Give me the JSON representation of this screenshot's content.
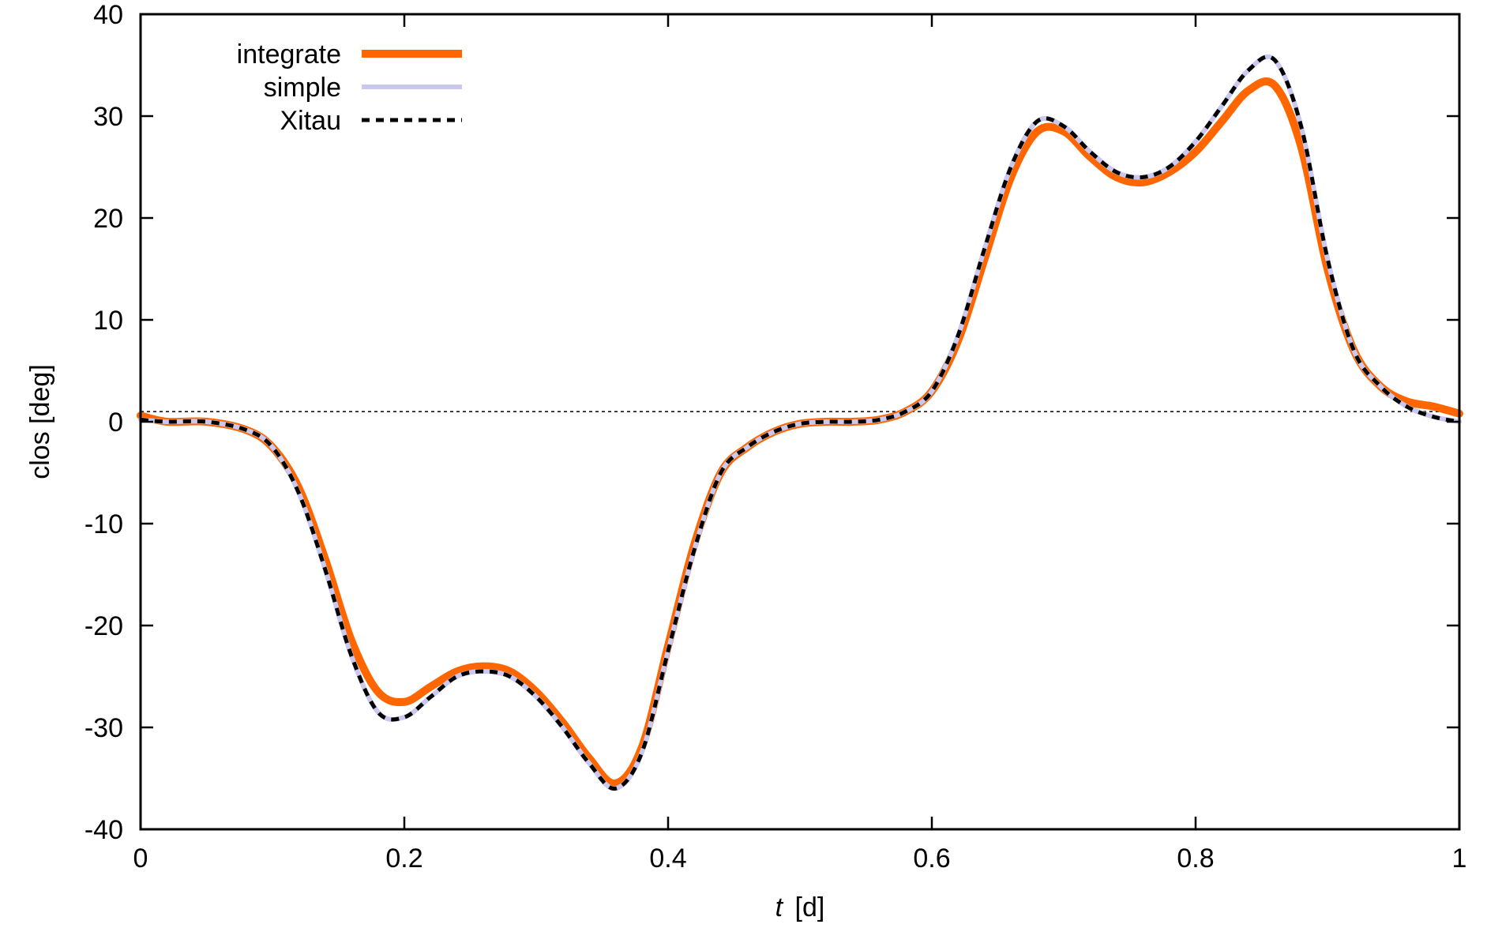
{
  "chart_data": {
    "type": "line",
    "title": "",
    "xlabel_italic": "t",
    "xlabel_unit": "[d]",
    "ylabel": "clos [deg]",
    "xlim": [
      0,
      1
    ],
    "ylim": [
      -40,
      40
    ],
    "xticks": [
      0,
      0.2,
      0.4,
      0.6,
      0.8,
      1
    ],
    "xtick_labels": [
      "0",
      "0.2",
      "0.4",
      "0.6",
      "0.8",
      "1"
    ],
    "yticks": [
      -40,
      -30,
      -20,
      -10,
      0,
      10,
      20,
      30,
      40
    ],
    "ytick_labels": [
      "-40",
      "-30",
      "-20",
      "-10",
      "0",
      "10",
      "20",
      "30",
      "40"
    ],
    "grid": false,
    "legend_position": "top-left",
    "reference_line": {
      "y": 1,
      "style": "dotted",
      "color": "#000000"
    },
    "series": [
      {
        "name": "integrate",
        "color": "#ff6600",
        "style": "solid-thick",
        "x": [
          0,
          0.02,
          0.05,
          0.08,
          0.1,
          0.12,
          0.14,
          0.16,
          0.18,
          0.2,
          0.22,
          0.24,
          0.26,
          0.28,
          0.3,
          0.32,
          0.34,
          0.36,
          0.38,
          0.4,
          0.42,
          0.44,
          0.46,
          0.48,
          0.5,
          0.52,
          0.54,
          0.56,
          0.58,
          0.6,
          0.62,
          0.64,
          0.66,
          0.68,
          0.7,
          0.72,
          0.74,
          0.76,
          0.78,
          0.8,
          0.82,
          0.84,
          0.86,
          0.88,
          0.9,
          0.92,
          0.94,
          0.96,
          0.98,
          1
        ],
        "y": [
          0.6,
          0,
          0,
          -0.8,
          -2.5,
          -6.5,
          -13.5,
          -21.5,
          -26.5,
          -27.5,
          -26,
          -24.5,
          -24,
          -24.5,
          -26.5,
          -29.5,
          -33,
          -35.5,
          -32,
          -22,
          -12,
          -5,
          -2.5,
          -1,
          -0.2,
          0,
          0,
          0.2,
          1,
          3,
          8,
          16,
          24,
          28.5,
          28.5,
          26,
          24,
          23.5,
          24.5,
          26.5,
          29.5,
          32.5,
          33,
          27,
          15,
          7,
          3.5,
          2,
          1.5,
          0.8
        ]
      },
      {
        "name": "simple",
        "color": "#c8c8f0",
        "style": "solid",
        "x": [
          0,
          0.02,
          0.05,
          0.08,
          0.1,
          0.12,
          0.14,
          0.16,
          0.18,
          0.2,
          0.22,
          0.24,
          0.26,
          0.28,
          0.3,
          0.32,
          0.34,
          0.36,
          0.38,
          0.4,
          0.42,
          0.44,
          0.46,
          0.48,
          0.5,
          0.52,
          0.54,
          0.56,
          0.58,
          0.6,
          0.62,
          0.64,
          0.66,
          0.68,
          0.7,
          0.72,
          0.74,
          0.76,
          0.78,
          0.8,
          0.82,
          0.84,
          0.86,
          0.88,
          0.9,
          0.92,
          0.94,
          0.96,
          0.98,
          1
        ],
        "y": [
          0.2,
          0,
          0,
          -0.8,
          -2.5,
          -7,
          -14.5,
          -23,
          -28.5,
          -29,
          -27,
          -25,
          -24.5,
          -25,
          -27,
          -30,
          -33.5,
          -36,
          -32.5,
          -22.5,
          -12.5,
          -5,
          -2.5,
          -1,
          -0.2,
          0,
          0,
          0.2,
          1,
          3,
          8.5,
          17,
          25,
          29.5,
          29,
          26.5,
          24.5,
          24,
          25,
          27.5,
          31,
          34.5,
          35.5,
          29,
          16,
          7,
          3.5,
          1.5,
          0.5,
          0
        ]
      },
      {
        "name": "Xitau",
        "color": "#000000",
        "style": "dashed",
        "x": [
          0,
          0.02,
          0.05,
          0.08,
          0.1,
          0.12,
          0.14,
          0.16,
          0.18,
          0.2,
          0.22,
          0.24,
          0.26,
          0.28,
          0.3,
          0.32,
          0.34,
          0.36,
          0.38,
          0.4,
          0.42,
          0.44,
          0.46,
          0.48,
          0.5,
          0.52,
          0.54,
          0.56,
          0.58,
          0.6,
          0.62,
          0.64,
          0.66,
          0.68,
          0.7,
          0.72,
          0.74,
          0.76,
          0.78,
          0.8,
          0.82,
          0.84,
          0.86,
          0.88,
          0.9,
          0.92,
          0.94,
          0.96,
          0.98,
          1
        ],
        "y": [
          0.2,
          0,
          0,
          -0.8,
          -2.5,
          -7,
          -14.5,
          -23,
          -28.5,
          -29,
          -27,
          -25,
          -24.5,
          -25,
          -27,
          -30,
          -33.5,
          -36,
          -32.5,
          -22.5,
          -12.5,
          -5,
          -2.5,
          -1,
          -0.2,
          0,
          0,
          0.2,
          1,
          3,
          8.5,
          17,
          25,
          29.5,
          29,
          26.5,
          24.5,
          24,
          25,
          27.5,
          31,
          34.5,
          35.5,
          29,
          16,
          7,
          3.5,
          1.5,
          0.5,
          0
        ]
      }
    ]
  }
}
